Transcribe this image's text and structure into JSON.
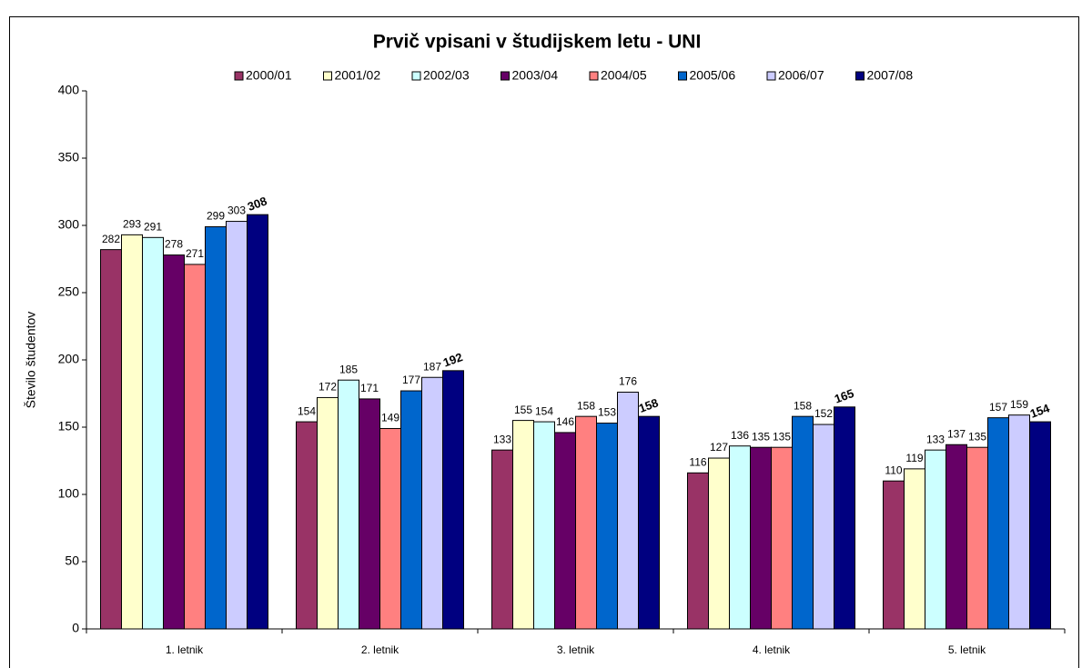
{
  "chart_data": {
    "type": "bar",
    "title": "Prvič vpisani v študijskem letu - UNI",
    "y_label": "Število študentov",
    "categories": [
      "1. letnik",
      "2. letnik",
      "3. letnik",
      "4. letnik",
      "5. letnik"
    ],
    "series": [
      {
        "name": "2000/01",
        "color": "#993366",
        "values": [
          282,
          154,
          133,
          116,
          110
        ]
      },
      {
        "name": "2001/02",
        "color": "#FFFFCC",
        "values": [
          293,
          172,
          155,
          127,
          119
        ]
      },
      {
        "name": "2002/03",
        "color": "#CCFFFF",
        "values": [
          291,
          185,
          154,
          136,
          133
        ]
      },
      {
        "name": "2003/04",
        "color": "#660066",
        "values": [
          278,
          171,
          146,
          135,
          137
        ]
      },
      {
        "name": "2004/05",
        "color": "#FF8080",
        "values": [
          271,
          149,
          158,
          135,
          135
        ]
      },
      {
        "name": "2005/06",
        "color": "#0066CC",
        "values": [
          299,
          177,
          153,
          158,
          157
        ]
      },
      {
        "name": "2006/07",
        "color": "#CCCCFF",
        "values": [
          303,
          187,
          176,
          152,
          159
        ]
      },
      {
        "name": "2007/08",
        "color": "#000080",
        "values": [
          308,
          192,
          158,
          165,
          154
        ]
      }
    ],
    "ylim": [
      0,
      400
    ],
    "yticks": [
      0,
      50,
      100,
      150,
      200,
      250,
      300,
      350,
      400
    ],
    "grid": false,
    "legend": "top"
  }
}
